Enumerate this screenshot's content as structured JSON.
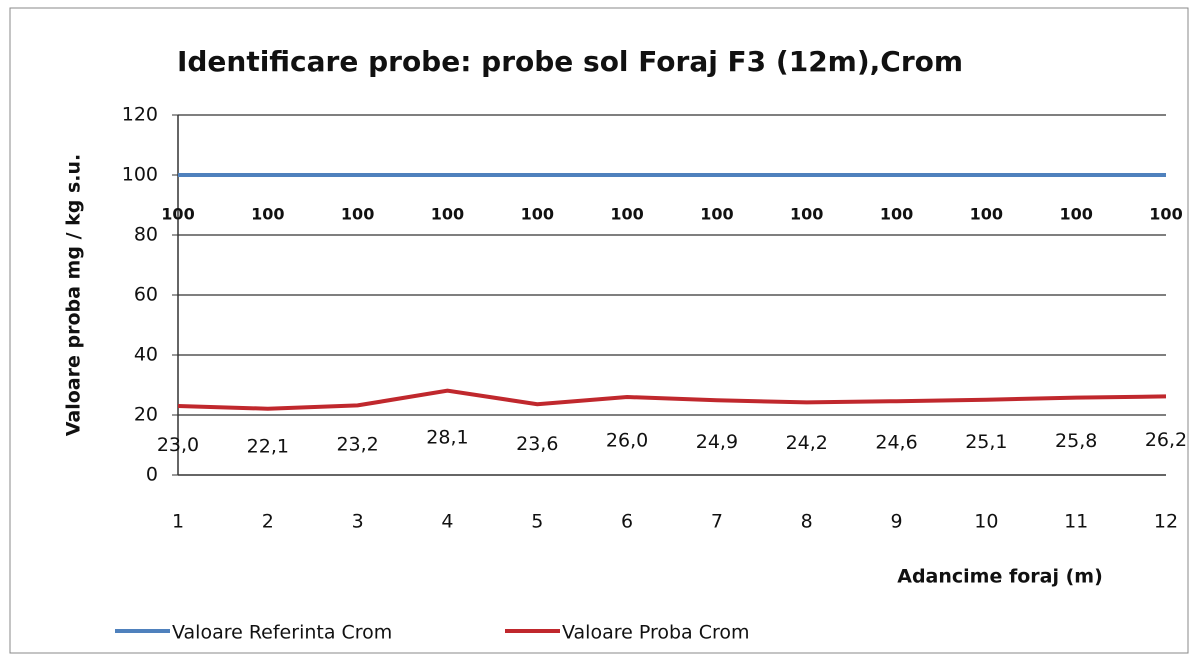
{
  "chart_data": {
    "type": "line",
    "title": "Identificare probe: probe sol Foraj F3 (12m),Crom",
    "y_label": "Valoare proba mg / kg s.u.",
    "x_label": "Adancime foraj (m)",
    "categories": [
      "1",
      "2",
      "3",
      "4",
      "5",
      "6",
      "7",
      "8",
      "9",
      "10",
      "11",
      "12"
    ],
    "series": [
      {
        "name": "Valoare Referinta Crom",
        "color": "#4f81bd",
        "values": [
          100,
          100,
          100,
          100,
          100,
          100,
          100,
          100,
          100,
          100,
          100,
          100
        ]
      },
      {
        "name": "Valoare Proba Crom",
        "color": "#c0282d",
        "values": [
          23.0,
          22.1,
          23.2,
          28.1,
          23.6,
          26.0,
          24.9,
          24.2,
          24.6,
          25.1,
          25.8,
          26.2
        ],
        "value_labels": [
          "23,0",
          "22,1",
          "23,2",
          "28,1",
          "23,6",
          "26,0",
          "24,9",
          "24,2",
          "24,6",
          "25,1",
          "25,8",
          "26,2"
        ]
      }
    ],
    "ylim": [
      0,
      120
    ],
    "yticks": [
      0,
      20,
      40,
      60,
      80,
      100,
      120
    ],
    "grid": true,
    "legend": "bottom"
  }
}
